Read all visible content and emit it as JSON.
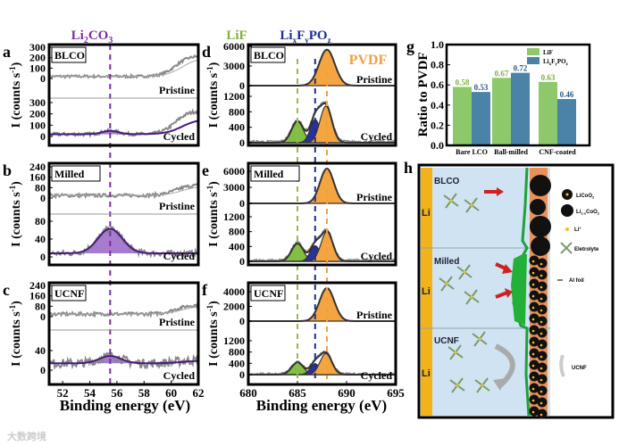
{
  "colors": {
    "li2co3": "#7b2fa0",
    "lif": "#7fb040",
    "lifpo": "#1f2f8f",
    "pvdf": "#f0a040",
    "bar_lif": "#8dc86a",
    "bar_lifpo": "#4a82a8",
    "data": "#888888"
  },
  "headers": {
    "li2co3": [
      "Li",
      "2",
      "CO",
      "3"
    ],
    "lif": "LiF",
    "lifpo": [
      "Li",
      "x",
      "F",
      "y",
      "PO",
      "z"
    ],
    "pvdf": "PVDF"
  },
  "axis": {
    "ylabel": "I (counts s",
    "ylabel_sup": "-1",
    "ylabel_close": ")",
    "xlabel_left": "Binding energy (eV)",
    "xlabel_mid": "Binding energy (eV)",
    "xticks_left": [
      52,
      54,
      56,
      58,
      60,
      62
    ],
    "xticks_mid": [
      680,
      685,
      690,
      695
    ]
  },
  "panels": {
    "a": {
      "letter": "a",
      "sample": "BLCO",
      "top": "Pristine",
      "bottom": "Cycled",
      "yticks_top": [
        300,
        200,
        100,
        0
      ],
      "yticks_bottom": [
        300,
        200,
        100,
        0
      ]
    },
    "b": {
      "letter": "b",
      "sample": "Milled",
      "top": "Pristine",
      "bottom": "Cycled",
      "yticks_top": [
        240,
        160,
        80,
        0
      ],
      "yticks_bottom": [
        80,
        40,
        0
      ]
    },
    "c": {
      "letter": "c",
      "sample": "UCNF",
      "top": "Pristine",
      "bottom": "Cycled",
      "yticks_top": [
        240,
        160,
        80,
        0
      ],
      "yticks_bottom": [
        40,
        0
      ]
    },
    "d": {
      "letter": "d",
      "sample": "BLCO",
      "top": "Pristine",
      "bottom": "Cycled",
      "yticks_top": [
        6000,
        3000,
        0
      ],
      "yticks_bottom": [
        1200,
        800,
        400,
        0
      ]
    },
    "e": {
      "letter": "e",
      "sample": "Milled",
      "top": "Pristine",
      "bottom": "Cycled",
      "yticks_top": [
        6000,
        3000,
        0
      ],
      "yticks_bottom": [
        1200,
        800,
        400,
        0
      ]
    },
    "f": {
      "letter": "f",
      "sample": "UCNF",
      "top": "Pristine",
      "bottom": "Cycled",
      "yticks_top": [
        4000,
        2000,
        0
      ],
      "yticks_bottom": [
        1200,
        800,
        400,
        0
      ]
    }
  },
  "chart_data": [
    {
      "id": "g",
      "type": "bar",
      "title": "",
      "letter": "g",
      "ylabel": "Ratio to PVDF",
      "ylim": [
        0,
        1.0
      ],
      "yticks": [
        "0.0",
        "0.2",
        "0.4",
        "0.6",
        "0.8",
        "1.0"
      ],
      "categories": [
        "Bare LCO",
        "Ball-milled",
        "CNF-coated"
      ],
      "series": [
        {
          "name": "LiF",
          "values": [
            0.58,
            0.67,
            0.63
          ]
        },
        {
          "name": "LixFyPOz",
          "name_parts": [
            "Li",
            "x",
            "F",
            "y",
            "PO",
            "z"
          ],
          "values": [
            0.53,
            0.72,
            0.46
          ]
        }
      ],
      "legend": "top-right"
    },
    {
      "id": "xps-li1s",
      "type": "line",
      "xlabel": "Binding energy (eV)",
      "ylabel": "I (counts s-1)",
      "xlim": [
        51,
        62
      ],
      "component": "Li2CO3",
      "peak_center": 55.5,
      "spectra": [
        {
          "panel": "a",
          "state": "Pristine",
          "baseline": 20,
          "rise": 200,
          "peaks": []
        },
        {
          "panel": "a",
          "state": "Cycled",
          "baseline": 20,
          "rise": 150,
          "peaks": [
            {
              "center": 55.5,
              "amp": 30,
              "sigma": 0.6
            }
          ]
        },
        {
          "panel": "b",
          "state": "Pristine",
          "baseline": 20,
          "rise": 80,
          "peaks": []
        },
        {
          "panel": "b",
          "state": "Cycled",
          "baseline": 8,
          "rise": 0,
          "peaks": [
            {
              "center": 55.5,
              "amp": 55,
              "sigma": 0.9
            }
          ]
        },
        {
          "panel": "c",
          "state": "Pristine",
          "baseline": 20,
          "rise": 70,
          "peaks": []
        },
        {
          "panel": "c",
          "state": "Cycled",
          "baseline": 14,
          "rise": 6,
          "peaks": [
            {
              "center": 55.5,
              "amp": 15,
              "sigma": 0.8
            }
          ]
        }
      ]
    },
    {
      "id": "xps-f1s",
      "type": "line",
      "xlabel": "Binding energy (eV)",
      "ylabel": "I (counts s-1)",
      "xlim": [
        680,
        695
      ],
      "components": {
        "LiF": 685.0,
        "LixFyPOz": 686.8,
        "PVDF": 688.0
      },
      "spectra": [
        {
          "panel": "d",
          "state": "Pristine",
          "peaks": [
            {
              "name": "PVDF",
              "center": 688.0,
              "amp": 5500,
              "sigma": 0.8
            }
          ]
        },
        {
          "panel": "d",
          "state": "Cycled",
          "peaks": [
            {
              "name": "LiF",
              "center": 685.0,
              "amp": 560,
              "sigma": 0.6
            },
            {
              "name": "LixFyPOz",
              "center": 686.8,
              "amp": 600,
              "sigma": 0.5
            },
            {
              "name": "PVDF",
              "center": 687.9,
              "amp": 950,
              "sigma": 0.6
            }
          ]
        },
        {
          "panel": "e",
          "state": "Pristine",
          "peaks": [
            {
              "name": "PVDF",
              "center": 688.0,
              "amp": 6500,
              "sigma": 0.7
            }
          ]
        },
        {
          "panel": "e",
          "state": "Cycled",
          "peaks": [
            {
              "name": "LiF",
              "center": 685.0,
              "amp": 480,
              "sigma": 0.6
            },
            {
              "name": "LixFyPOz",
              "center": 686.8,
              "amp": 420,
              "sigma": 0.5
            },
            {
              "name": "PVDF",
              "center": 688.0,
              "amp": 800,
              "sigma": 0.6
            }
          ]
        },
        {
          "panel": "f",
          "state": "Pristine",
          "peaks": [
            {
              "name": "PVDF",
              "center": 688.0,
              "amp": 4500,
              "sigma": 0.75
            }
          ]
        },
        {
          "panel": "f",
          "state": "Cycled",
          "peaks": [
            {
              "name": "LiF",
              "center": 685.0,
              "amp": 430,
              "sigma": 0.6
            },
            {
              "name": "LixFyPOz",
              "center": 686.8,
              "amp": 380,
              "sigma": 0.5
            },
            {
              "name": "PVDF",
              "center": 687.9,
              "amp": 750,
              "sigma": 0.6
            }
          ]
        }
      ]
    }
  ],
  "schematic": {
    "letter": "h",
    "rows": [
      "BLCO",
      "Milled",
      "UCNF"
    ],
    "anode": "Li",
    "legend": {
      "licoo2": [
        "LiCoO",
        "2"
      ],
      "li1x": [
        "Li",
        "1-x",
        "CoO",
        "2"
      ],
      "liion": [
        "Li",
        "+"
      ],
      "electrolyte": "Eletrolyte",
      "alfoil": "Al foil",
      "ucnf": "UCNF"
    }
  },
  "watermark": "大数跨境"
}
